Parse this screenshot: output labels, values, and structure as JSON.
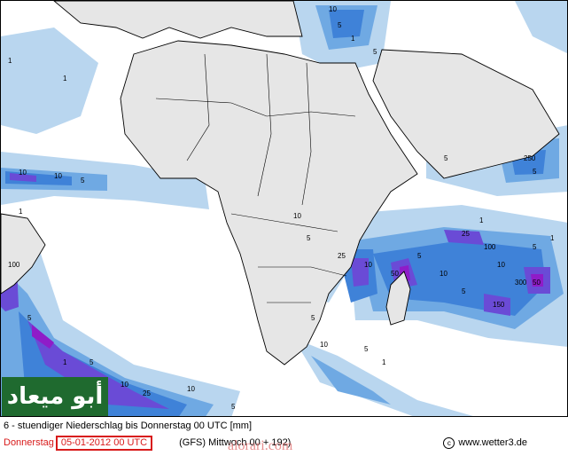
{
  "map": {
    "region": "Africa / Indian Ocean",
    "colors": {
      "land": "#e6e6e6",
      "ocean": "#ffffff",
      "precip_1": "#b9d6ef",
      "precip_5": "#6fa9e3",
      "precip_10": "#3f82d8",
      "precip_25": "#6a4bd6",
      "precip_50": "#8f1cc8"
    },
    "contour_labels": [
      "1",
      "5",
      "10",
      "25",
      "50",
      "100",
      "150",
      "250",
      "300"
    ]
  },
  "caption": {
    "line1": "6 - stuendiger Niederschlag bis Donnerstag 00 UTC [mm]",
    "valid_day": "Donnerstag",
    "valid_date": "05-01-2012  00 UTC",
    "run_info": "(GFS)   Mittwoch 00 + 192)",
    "copyright_symbol": "c",
    "copyright_text": "www.wetter3.de"
  },
  "logo_text": "أبو ميعاد",
  "watermark_text": "alorari.com"
}
